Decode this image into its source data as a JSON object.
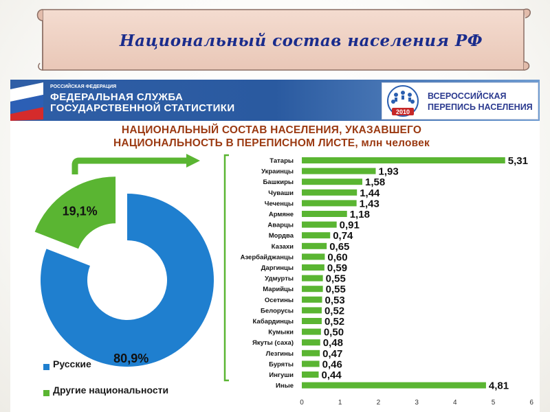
{
  "page": {
    "title": "Национальный состав населения РФ"
  },
  "header": {
    "agency_small": "РОССИЙСКАЯ ФЕДЕРАЦИЯ",
    "agency_line1": "ФЕДЕРАЛЬНАЯ СЛУЖБА",
    "agency_line2": "ГОСУДАРСТВЕННОЙ СТАТИСТИКИ",
    "census_line1": "ВСЕРОССИЙСКАЯ",
    "census_line2": "ПЕРЕПИСЬ НАСЕЛЕНИЯ",
    "census_year": "2010"
  },
  "colors": {
    "title_blue": "#1a2c8c",
    "chart_title": "#9b3a12",
    "bar_green": "#5ab532",
    "donut_blue": "#1f7fcf",
    "donut_green": "#5ab532"
  },
  "chart_data": [
    {
      "type": "pie",
      "title_lines": [
        "НАЦИОНАЛЬНЫЙ СОСТАВ НАСЕЛЕНИЯ, УКАЗАВШЕГО",
        "НАЦИОНАЛЬНОСТЬ В ПЕРЕПИСНОМ ЛИСТЕ, млн человек"
      ],
      "style": "donut",
      "slices": [
        {
          "label": "Русские",
          "value": 80.9,
          "display": "80,9%",
          "color": "#1f7fcf"
        },
        {
          "label": "Другие национальности",
          "value": 19.1,
          "display": "19,1%",
          "color": "#5ab532"
        }
      ],
      "legend": "bottom-left"
    },
    {
      "type": "bar",
      "orientation": "horizontal",
      "categories": [
        "Татары",
        "Украинцы",
        "Башкиры",
        "Чуваши",
        "Чеченцы",
        "Армяне",
        "Аварцы",
        "Мордва",
        "Казахи",
        "Азербайджанцы",
        "Даргинцы",
        "Удмурты",
        "Марийцы",
        "Осетины",
        "Белорусы",
        "Кабардинцы",
        "Кумыки",
        "Якуты (саха)",
        "Лезгины",
        "Буряты",
        "Ингуши",
        "Иные"
      ],
      "values": [
        5.31,
        1.93,
        1.58,
        1.44,
        1.43,
        1.18,
        0.91,
        0.74,
        0.65,
        0.6,
        0.59,
        0.55,
        0.55,
        0.53,
        0.52,
        0.52,
        0.5,
        0.48,
        0.47,
        0.46,
        0.44,
        4.81
      ],
      "labels": [
        "5,31",
        "1,93",
        "1,58",
        "1,44",
        "1,43",
        "1,18",
        "0,91",
        "0,74",
        "0,65",
        "0,60",
        "0,59",
        "0,55",
        "0,55",
        "0,53",
        "0,52",
        "0,52",
        "0,50",
        "0,48",
        "0,47",
        "0,46",
        "0,44",
        "4,81"
      ],
      "xlim": [
        0,
        6
      ],
      "xticks": [
        "0",
        "1",
        "2",
        "3",
        "4",
        "5",
        "6"
      ],
      "grid": false
    }
  ]
}
